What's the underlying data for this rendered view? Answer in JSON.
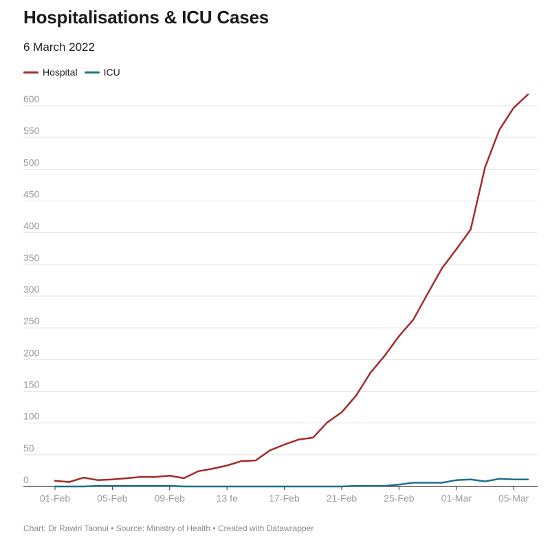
{
  "header": {
    "title": "Hospitalisations & ICU Cases",
    "subtitle": "6 March 2022"
  },
  "legend": {
    "items": [
      {
        "label": "Hospital",
        "color": "#a52a2a"
      },
      {
        "label": "ICU",
        "color": "#1f6f8b"
      }
    ]
  },
  "footer": {
    "text": "Chart: Dr Rawiri Taonui • Source: Ministry of Health • Created with Datawrapper"
  },
  "chart_data": {
    "type": "line",
    "title": "Hospitalisations & ICU Cases",
    "subtitle": "6 March 2022",
    "xlabel": "",
    "ylabel": "",
    "ylim": [
      0,
      600
    ],
    "yticks": [
      0,
      50,
      100,
      150,
      200,
      250,
      300,
      350,
      400,
      450,
      500,
      550,
      600
    ],
    "grid": true,
    "legend_position": "top-left",
    "x": [
      "01-Feb",
      "02-Feb",
      "03-Feb",
      "04-Feb",
      "05-Feb",
      "06-Feb",
      "07-Feb",
      "08-Feb",
      "09-Feb",
      "10-Feb",
      "11-Feb",
      "12-Feb",
      "13-Feb",
      "14-Feb",
      "15-Feb",
      "16-Feb",
      "17-Feb",
      "18-Feb",
      "19-Feb",
      "20-Feb",
      "21-Feb",
      "22-Feb",
      "23-Feb",
      "24-Feb",
      "25-Feb",
      "26-Feb",
      "27-Feb",
      "28-Feb",
      "01-Mar",
      "02-Mar",
      "03-Mar",
      "04-Mar",
      "05-Mar",
      "06-Mar"
    ],
    "xtick_labels": [
      {
        "index": 0,
        "label": "01-Feb"
      },
      {
        "index": 4,
        "label": "05-Feb"
      },
      {
        "index": 8,
        "label": "09-Feb"
      },
      {
        "index": 12,
        "label": "13 fe"
      },
      {
        "index": 16,
        "label": "17-Feb"
      },
      {
        "index": 20,
        "label": "21-Feb"
      },
      {
        "index": 24,
        "label": "25-Feb"
      },
      {
        "index": 28,
        "label": "01-Mar"
      },
      {
        "index": 32,
        "label": "05-Mar"
      }
    ],
    "series": [
      {
        "name": "Hospital",
        "color": "#a52a2a",
        "values": [
          9,
          7,
          14,
          10,
          11,
          13,
          15,
          15,
          17,
          13,
          24,
          28,
          33,
          40,
          41,
          57,
          66,
          74,
          77,
          101,
          117,
          143,
          179,
          206,
          237,
          263,
          304,
          344,
          374,
          405,
          503,
          562,
          597,
          618
        ]
      },
      {
        "name": "ICU",
        "color": "#1f6f8b",
        "values": [
          0,
          0,
          0,
          1,
          1,
          1,
          1,
          1,
          1,
          0,
          0,
          0,
          0,
          0,
          0,
          0,
          0,
          0,
          0,
          0,
          0,
          1,
          1,
          1,
          3,
          6,
          6,
          6,
          10,
          11,
          8,
          12,
          11,
          11
        ]
      }
    ]
  }
}
